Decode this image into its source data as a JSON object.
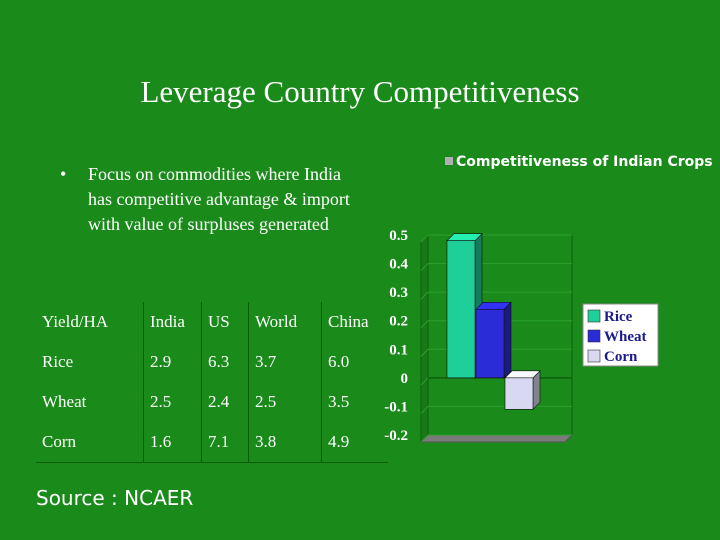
{
  "slide": {
    "title": "Leverage Country Competitiveness",
    "bullet_symbol": "•",
    "bullet_text": "Focus on commodities where India has competitive advantage & import with value of surpluses generated",
    "source": "Source : NCAER"
  },
  "table": {
    "headers": [
      "Yield/HA",
      "India",
      "US",
      "World",
      "China"
    ],
    "rows": [
      [
        "Rice",
        "2.9",
        "6.3",
        "3.7",
        "6.0"
      ],
      [
        "Wheat",
        "2.5",
        "2.4",
        "2.5",
        "3.5"
      ],
      [
        "Corn",
        "1.6",
        "7.1",
        "3.8",
        "4.9"
      ]
    ]
  },
  "chart_data": {
    "type": "bar",
    "title": "Competitiveness of Indian Crops",
    "categories": [
      "Rice",
      "Wheat",
      "Corn"
    ],
    "values": [
      0.48,
      0.24,
      -0.11
    ],
    "ylim": [
      -0.2,
      0.5
    ],
    "yticks": [
      "0.5",
      "0.4",
      "0.3",
      "0.2",
      "0.1",
      "0",
      "-0.1",
      "-0.2"
    ],
    "colors": [
      "#1fcf9a",
      "#2b2bd8",
      "#d8d8f2"
    ],
    "legend": [
      "Rice",
      "Wheat",
      "Corn"
    ],
    "legend_position": "right",
    "grid": true,
    "title_marker_color": "#b0b0b0"
  }
}
